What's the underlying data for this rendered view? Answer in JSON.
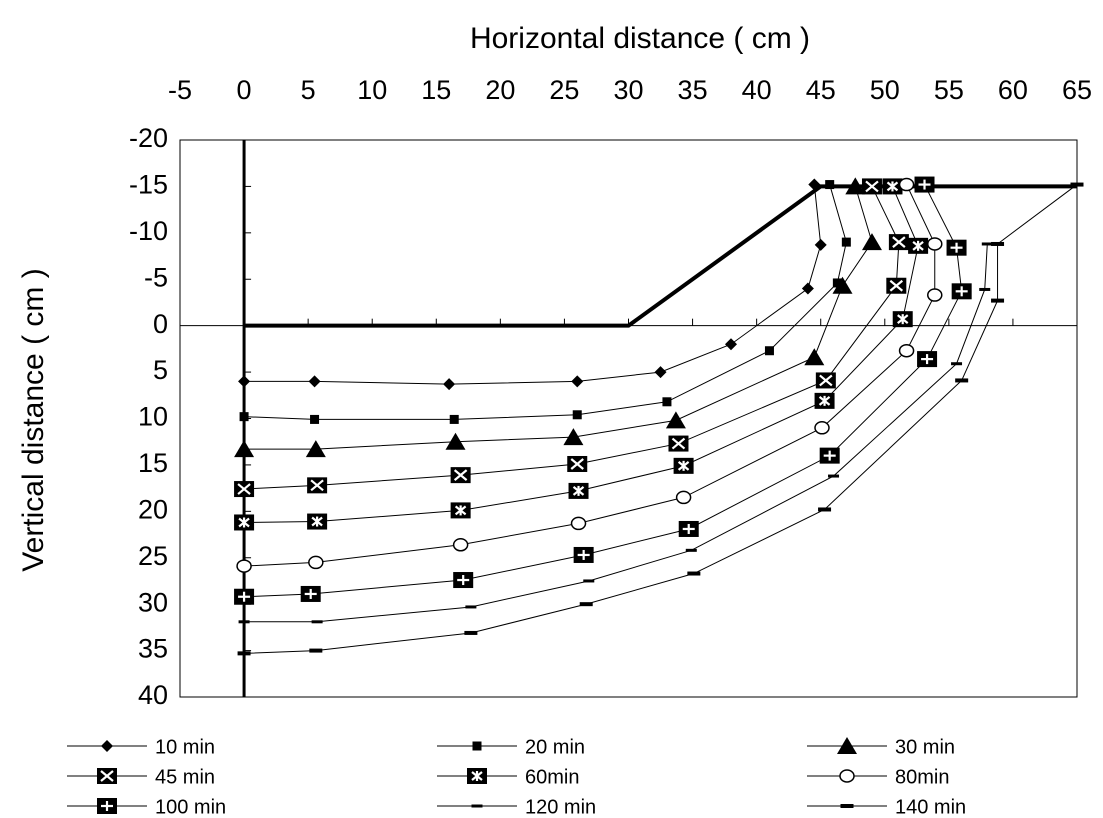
{
  "chart_data": {
    "type": "line",
    "x_label": "Horizontal distance ( cm )",
    "y_label": "Vertical distance ( cm )",
    "xlim": [
      -5,
      65
    ],
    "xticks": [
      -5,
      0,
      5,
      10,
      15,
      20,
      25,
      30,
      35,
      40,
      45,
      50,
      55,
      60,
      65
    ],
    "ylim": [
      -20,
      40
    ],
    "yticks": [
      -20,
      -15,
      -10,
      -5,
      0,
      5,
      10,
      15,
      20,
      25,
      30,
      35,
      40
    ],
    "y_inverted": true,
    "grid": false,
    "legend": "bottom",
    "profile": {
      "x": [
        0,
        30,
        45,
        65
      ],
      "y": [
        0,
        0,
        -15,
        -15
      ],
      "color": "#000000"
    },
    "series": [
      {
        "name": "10 min",
        "color": "#000000",
        "marker": "diamond",
        "x": [
          0,
          5.5,
          16,
          26,
          32.5,
          38,
          44,
          45,
          44.5
        ],
        "y": [
          6,
          6,
          6.3,
          6,
          5,
          2,
          -4,
          -8.7,
          -15.2
        ]
      },
      {
        "name": "20 min",
        "color": "#000000",
        "marker": "square",
        "x": [
          0,
          5.5,
          16.4,
          26,
          33,
          41,
          46.3,
          47,
          45.7
        ],
        "y": [
          9.8,
          10.1,
          10.1,
          9.6,
          8.2,
          2.7,
          -4.6,
          -9,
          -15.2
        ]
      },
      {
        "name": "30 min",
        "color": "#000000",
        "marker": "triangle",
        "x": [
          0,
          5.6,
          16.5,
          25.7,
          33.7,
          44.5,
          46.7,
          49,
          47.7
        ],
        "y": [
          13.3,
          13.3,
          12.5,
          12,
          10.2,
          3.4,
          -4.3,
          -9,
          -15
        ]
      },
      {
        "name": "45 min",
        "color": "#000000",
        "marker": "boxx",
        "x": [
          0,
          5.7,
          16.9,
          26,
          33.9,
          45.4,
          50.9,
          51.1,
          49
        ],
        "y": [
          17.6,
          17.2,
          16.1,
          14.9,
          12.7,
          5.9,
          -4.3,
          -9,
          -15
        ]
      },
      {
        "name": "60min",
        "color": "#000000",
        "marker": "boxstar",
        "x": [
          0,
          5.7,
          16.9,
          26.1,
          34.3,
          45.3,
          51.4,
          52.6,
          50.6
        ],
        "y": [
          21.2,
          21.1,
          19.9,
          17.8,
          15.1,
          8.1,
          -0.7,
          -8.6,
          -15
        ]
      },
      {
        "name": "80min",
        "color": "#000000",
        "marker": "circle",
        "x": [
          0,
          5.6,
          16.9,
          26.1,
          34.3,
          45.1,
          51.7,
          53.9,
          53.9,
          51.7
        ],
        "y": [
          25.9,
          25.5,
          23.6,
          21.3,
          18.5,
          11,
          2.7,
          -3.3,
          -8.8,
          -15.2
        ]
      },
      {
        "name": "100 min",
        "color": "#000000",
        "marker": "boxplus",
        "x": [
          0,
          5.2,
          17.1,
          26.5,
          34.7,
          45.7,
          53.3,
          56,
          55.6,
          53.1
        ],
        "y": [
          29.2,
          28.9,
          27.4,
          24.7,
          21.9,
          14,
          3.6,
          -3.7,
          -8.4,
          -15.2
        ]
      },
      {
        "name": "120 min",
        "color": "#000000",
        "marker": "dash",
        "x": [
          0,
          5.7,
          17.7,
          26.9,
          34.9,
          46,
          55.6,
          57.8,
          58
        ],
        "y": [
          31.9,
          31.9,
          30.3,
          27.5,
          24.2,
          16.2,
          4.1,
          -3.9,
          -8.8
        ]
      },
      {
        "name": "140 min",
        "color": "#000000",
        "marker": "dashbold",
        "x": [
          0,
          5.6,
          17.7,
          26.7,
          35.1,
          45.3,
          56,
          58.8,
          58.8,
          65
        ],
        "y": [
          35.3,
          35,
          33.1,
          30,
          26.7,
          19.8,
          5.9,
          -2.7,
          -8.8,
          -15.2
        ]
      }
    ]
  }
}
